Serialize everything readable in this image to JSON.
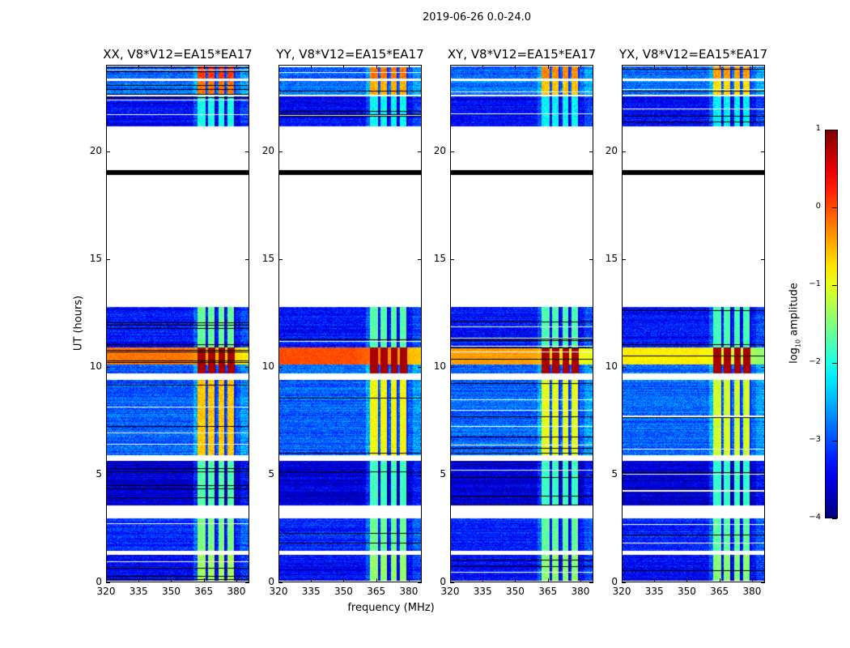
{
  "suptitle": "2019-06-26 0.0-24.0",
  "xlabel": "frequency (MHz)",
  "ylabel": "UT (hours)",
  "colorbar": {
    "label_main": "log",
    "label_sub": "10",
    "label_rest": " amplitude",
    "range": [
      -4,
      1
    ],
    "ticks": [
      "1",
      "0",
      "−1",
      "−2",
      "−3",
      "−4"
    ],
    "tick_values": [
      1,
      0,
      -1,
      -2,
      -3,
      -4
    ],
    "colormap": "jet"
  },
  "chart_data": {
    "type": "heatmap",
    "xlim": [
      320,
      386
    ],
    "ylim": [
      0,
      24
    ],
    "xticks": [
      320,
      335,
      350,
      365,
      380
    ],
    "yticks": [
      0,
      5,
      10,
      15,
      20
    ],
    "rfi_columns_mhz": [
      [
        362,
        366
      ],
      [
        367,
        370.5
      ],
      [
        372,
        375
      ],
      [
        376,
        379.5
      ]
    ],
    "segments_ut_hours": [
      {
        "t": [
          0.05,
          1.25
        ],
        "base": -3.4,
        "rfi": -1.5
      },
      {
        "t": [
          1.45,
          2.95
        ],
        "base": -3.2,
        "rfi": -1.7
      },
      {
        "t": [
          3.55,
          5.65
        ],
        "base": -3.6,
        "rfi": -1.9
      },
      {
        "t": [
          5.9,
          9.4
        ],
        "base": -2.9,
        "rfi": -1.2
      },
      {
        "t": [
          9.7,
          10.9
        ],
        "base": -2.9,
        "rfi": 0.3,
        "band": [
          10.1,
          10.9
        ]
      },
      {
        "t": [
          10.9,
          12.8
        ],
        "base": -3.3,
        "rfi": -1.8
      },
      {
        "t": [
          21.2,
          22.6
        ],
        "base": -3.4,
        "rfi": -2.2
      },
      {
        "t": [
          22.65,
          23.3
        ],
        "base": -2.8,
        "rfi": -0.8
      },
      {
        "t": [
          23.4,
          24.0
        ],
        "base": -2.9,
        "rfi": -0.5
      }
    ],
    "flag_line_ut": 19.05,
    "panels": [
      {
        "title": "XX, V8*V12=EA15*EA17",
        "rfi_boost": 0.6,
        "band_level": -0.2
      },
      {
        "title": "YY, V8*V12=EA15*EA17",
        "rfi_boost": 0.3,
        "band_level": 0.0
      },
      {
        "title": "XY, V8*V12=EA15*EA17",
        "rfi_boost": 0.2,
        "band_level": -0.4
      },
      {
        "title": "YX, V8*V12=EA15*EA17",
        "rfi_boost": 0.1,
        "band_level": -0.8
      }
    ]
  }
}
